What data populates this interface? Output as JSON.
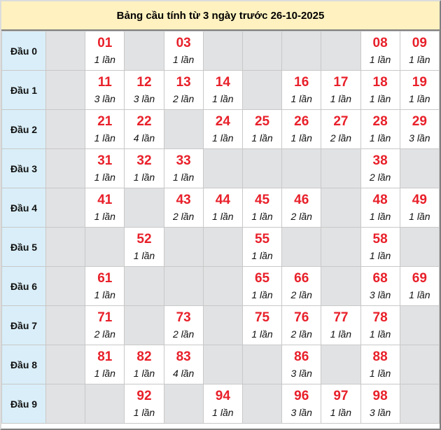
{
  "title": "Bảng cầu tính từ 3 ngày trước 26-10-2025",
  "colors": {
    "number": "#e8202a",
    "title_bg": "#fff2c0",
    "label_bg": "#d9eef8",
    "empty_bg": "#e1e2e4"
  },
  "rows": [
    {
      "label": "Đầu 0",
      "cells": [
        null,
        {
          "num": "01",
          "count": "1 lần"
        },
        null,
        {
          "num": "03",
          "count": "1 lần"
        },
        null,
        null,
        null,
        null,
        {
          "num": "08",
          "count": "1 lần"
        },
        {
          "num": "09",
          "count": "1 lần"
        }
      ]
    },
    {
      "label": "Đầu 1",
      "cells": [
        null,
        {
          "num": "11",
          "count": "3 lần"
        },
        {
          "num": "12",
          "count": "3 lần"
        },
        {
          "num": "13",
          "count": "2 lần"
        },
        {
          "num": "14",
          "count": "1 lần"
        },
        null,
        {
          "num": "16",
          "count": "1 lần"
        },
        {
          "num": "17",
          "count": "1 lần"
        },
        {
          "num": "18",
          "count": "1 lần"
        },
        {
          "num": "19",
          "count": "1 lần"
        }
      ]
    },
    {
      "label": "Đầu 2",
      "cells": [
        null,
        {
          "num": "21",
          "count": "1 lần"
        },
        {
          "num": "22",
          "count": "4 lần"
        },
        null,
        {
          "num": "24",
          "count": "1 lần"
        },
        {
          "num": "25",
          "count": "1 lần"
        },
        {
          "num": "26",
          "count": "1 lần"
        },
        {
          "num": "27",
          "count": "2 lần"
        },
        {
          "num": "28",
          "count": "1 lần"
        },
        {
          "num": "29",
          "count": "3 lần"
        }
      ]
    },
    {
      "label": "Đầu 3",
      "cells": [
        null,
        {
          "num": "31",
          "count": "1 lần"
        },
        {
          "num": "32",
          "count": "1 lần"
        },
        {
          "num": "33",
          "count": "1 lần"
        },
        null,
        null,
        null,
        null,
        {
          "num": "38",
          "count": "2 lần"
        },
        null
      ]
    },
    {
      "label": "Đầu 4",
      "cells": [
        null,
        {
          "num": "41",
          "count": "1 lần"
        },
        null,
        {
          "num": "43",
          "count": "2 lần"
        },
        {
          "num": "44",
          "count": "1 lần"
        },
        {
          "num": "45",
          "count": "1 lần"
        },
        {
          "num": "46",
          "count": "2 lần"
        },
        null,
        {
          "num": "48",
          "count": "1 lần"
        },
        {
          "num": "49",
          "count": "1 lần"
        }
      ]
    },
    {
      "label": "Đầu 5",
      "cells": [
        null,
        null,
        {
          "num": "52",
          "count": "1 lần"
        },
        null,
        null,
        {
          "num": "55",
          "count": "1 lần"
        },
        null,
        null,
        {
          "num": "58",
          "count": "1 lần"
        },
        null
      ]
    },
    {
      "label": "Đầu 6",
      "cells": [
        null,
        {
          "num": "61",
          "count": "1 lần"
        },
        null,
        null,
        null,
        {
          "num": "65",
          "count": "1 lần"
        },
        {
          "num": "66",
          "count": "2 lần"
        },
        null,
        {
          "num": "68",
          "count": "3 lần"
        },
        {
          "num": "69",
          "count": "1 lần"
        }
      ]
    },
    {
      "label": "Đầu 7",
      "cells": [
        null,
        {
          "num": "71",
          "count": "2 lần"
        },
        null,
        {
          "num": "73",
          "count": "2 lần"
        },
        null,
        {
          "num": "75",
          "count": "1 lần"
        },
        {
          "num": "76",
          "count": "2 lần"
        },
        {
          "num": "77",
          "count": "1 lần"
        },
        {
          "num": "78",
          "count": "1 lần"
        },
        null
      ]
    },
    {
      "label": "Đầu 8",
      "cells": [
        null,
        {
          "num": "81",
          "count": "1 lần"
        },
        {
          "num": "82",
          "count": "1 lần"
        },
        {
          "num": "83",
          "count": "4 lần"
        },
        null,
        null,
        {
          "num": "86",
          "count": "3 lần"
        },
        null,
        {
          "num": "88",
          "count": "1 lần"
        },
        null
      ]
    },
    {
      "label": "Đầu 9",
      "cells": [
        null,
        null,
        {
          "num": "92",
          "count": "1 lần"
        },
        null,
        {
          "num": "94",
          "count": "1 lần"
        },
        null,
        {
          "num": "96",
          "count": "3 lần"
        },
        {
          "num": "97",
          "count": "1 lần"
        },
        {
          "num": "98",
          "count": "3 lần"
        },
        null
      ]
    }
  ]
}
